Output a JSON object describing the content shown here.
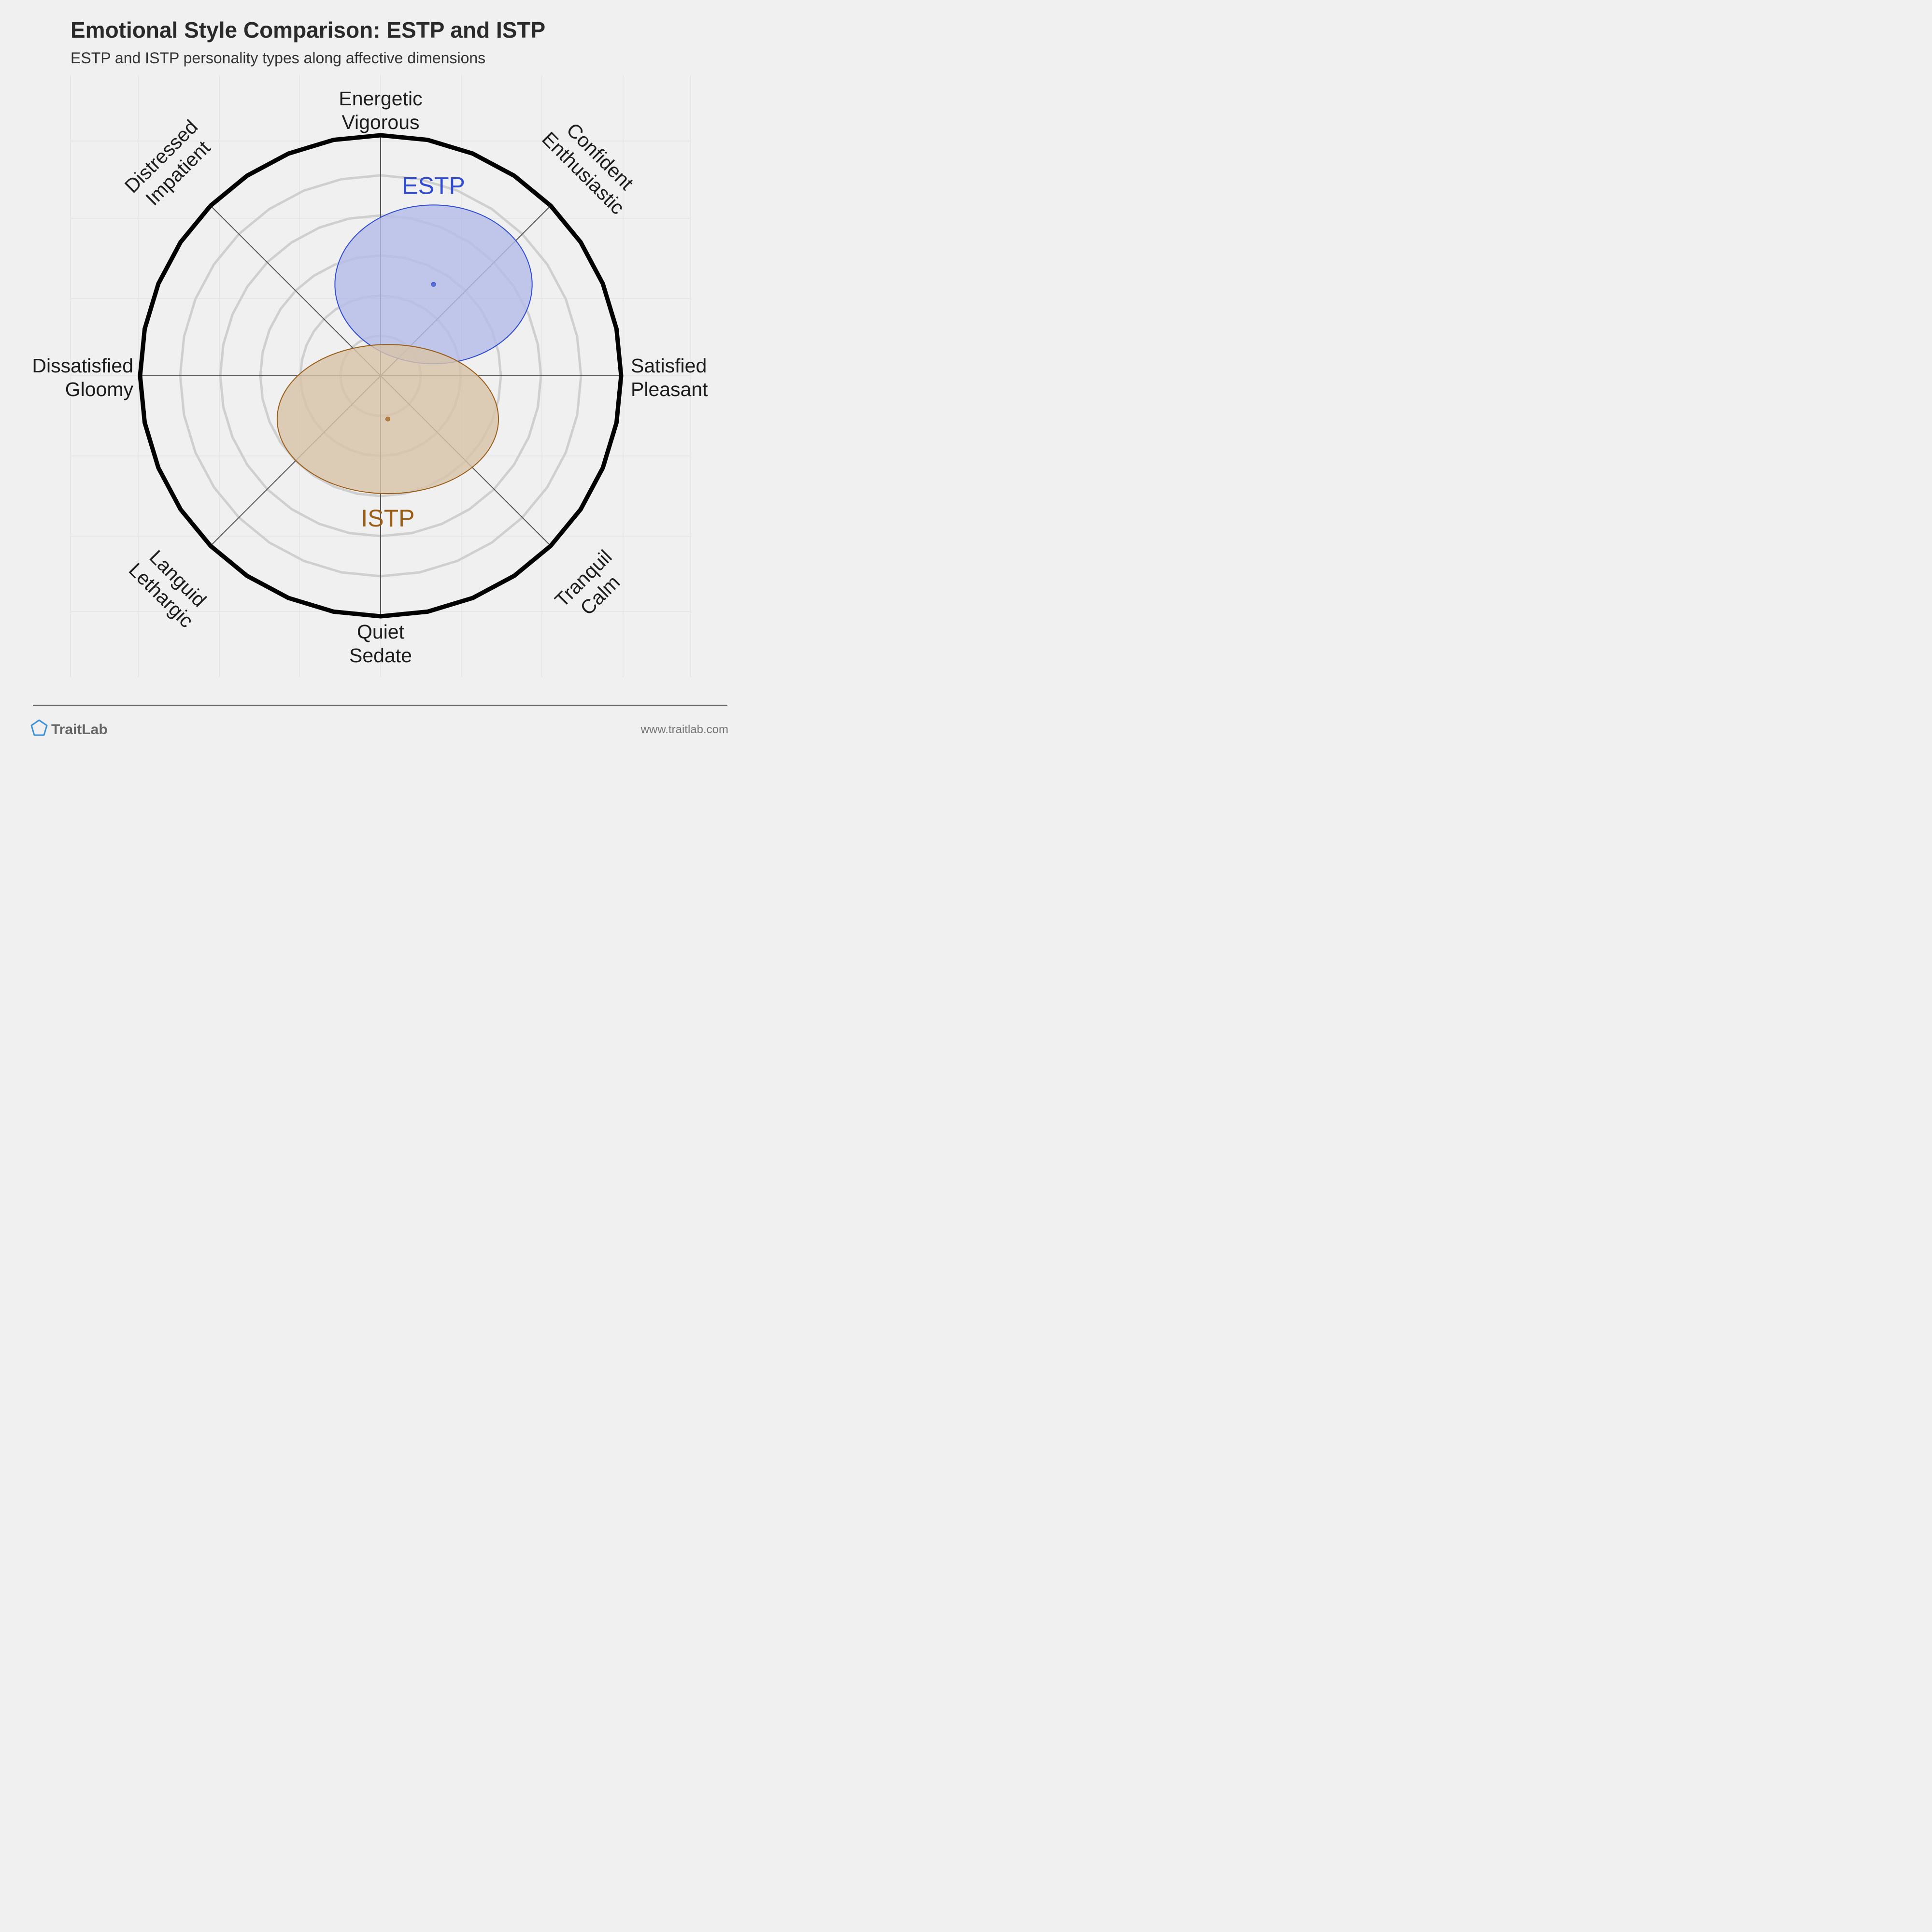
{
  "chart_data": {
    "type": "scatter",
    "title": "Emotional Style Comparison: ESTP and ISTP",
    "subtitle": "ESTP and ISTP personality types along affective dimensions",
    "axes": [
      {
        "direction": "top",
        "lines": [
          "Energetic",
          "Vigorous"
        ]
      },
      {
        "direction": "top-right",
        "lines": [
          "Confident",
          "Enthusiastic"
        ]
      },
      {
        "direction": "right",
        "lines": [
          "Satisfied",
          "Pleasant"
        ]
      },
      {
        "direction": "bottom-right",
        "lines": [
          "Tranquil",
          "Calm"
        ]
      },
      {
        "direction": "bottom",
        "lines": [
          "Quiet",
          "Sedate"
        ]
      },
      {
        "direction": "bottom-left",
        "lines": [
          "Languid",
          "Lethargic"
        ]
      },
      {
        "direction": "left",
        "lines": [
          "Dissatisfied",
          "Gloomy"
        ]
      },
      {
        "direction": "top-left",
        "lines": [
          "Distressed",
          "Impatient"
        ]
      }
    ],
    "xlim": [
      -1,
      1
    ],
    "ylim": [
      -1,
      1
    ],
    "x_meaning": "Dissatisfied (-) to Satisfied (+)",
    "y_meaning": "Quiet (-) to Energetic (+)",
    "rings": 6,
    "series": [
      {
        "name": "ESTP",
        "x": 0.22,
        "y": 0.38,
        "spread_x": 0.41,
        "spread_y": 0.33,
        "color": "#2f4bd0",
        "fill": "#b4bbe8",
        "label_position": "above"
      },
      {
        "name": "ISTP",
        "x": 0.03,
        "y": -0.18,
        "spread_x": 0.46,
        "spread_y": 0.31,
        "color": "#9a5e18",
        "fill": "#d7c3a8",
        "label_position": "below"
      }
    ]
  },
  "footer": {
    "brand": "TraitLab",
    "url": "www.traitlab.com"
  }
}
